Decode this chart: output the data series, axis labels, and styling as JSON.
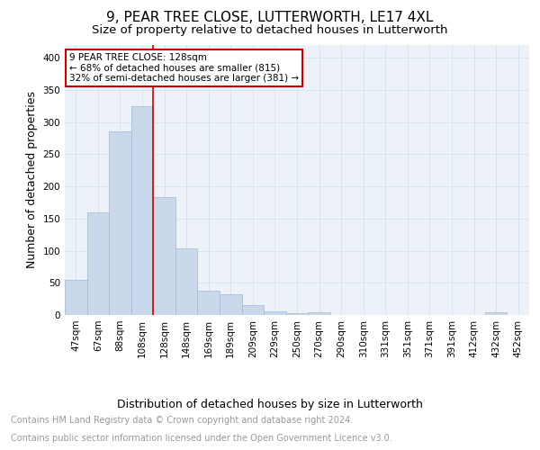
{
  "title": "9, PEAR TREE CLOSE, LUTTERWORTH, LE17 4XL",
  "subtitle": "Size of property relative to detached houses in Lutterworth",
  "xlabel": "Distribution of detached houses by size in Lutterworth",
  "ylabel": "Number of detached properties",
  "categories": [
    "47sqm",
    "67sqm",
    "88sqm",
    "108sqm",
    "128sqm",
    "148sqm",
    "169sqm",
    "189sqm",
    "209sqm",
    "229sqm",
    "250sqm",
    "270sqm",
    "290sqm",
    "310sqm",
    "331sqm",
    "351sqm",
    "371sqm",
    "391sqm",
    "412sqm",
    "432sqm",
    "452sqm"
  ],
  "values": [
    55,
    160,
    285,
    325,
    184,
    103,
    38,
    32,
    16,
    6,
    3,
    4,
    0,
    0,
    0,
    0,
    0,
    0,
    0,
    4,
    0
  ],
  "bar_color": "#c9d9eb",
  "bar_edge_color": "#a0b8d0",
  "red_line_index": 4,
  "annotation_title": "9 PEAR TREE CLOSE: 128sqm",
  "annotation_line1": "← 68% of detached houses are smaller (815)",
  "annotation_line2": "32% of semi-detached houses are larger (381) →",
  "annotation_box_color": "#ffffff",
  "annotation_box_edge": "#cc0000",
  "red_line_color": "#cc0000",
  "ylim": [
    0,
    420
  ],
  "yticks": [
    0,
    50,
    100,
    150,
    200,
    250,
    300,
    350,
    400
  ],
  "grid_color": "#d8e4f0",
  "footnote_line1": "Contains HM Land Registry data © Crown copyright and database right 2024.",
  "footnote_line2": "Contains public sector information licensed under the Open Government Licence v3.0.",
  "title_fontsize": 11,
  "subtitle_fontsize": 9.5,
  "xlabel_fontsize": 9,
  "ylabel_fontsize": 9,
  "tick_fontsize": 7.5,
  "annotation_fontsize": 7.5,
  "footnote_fontsize": 7,
  "footnote_color": "#999999",
  "background_color": "#edf2f9"
}
